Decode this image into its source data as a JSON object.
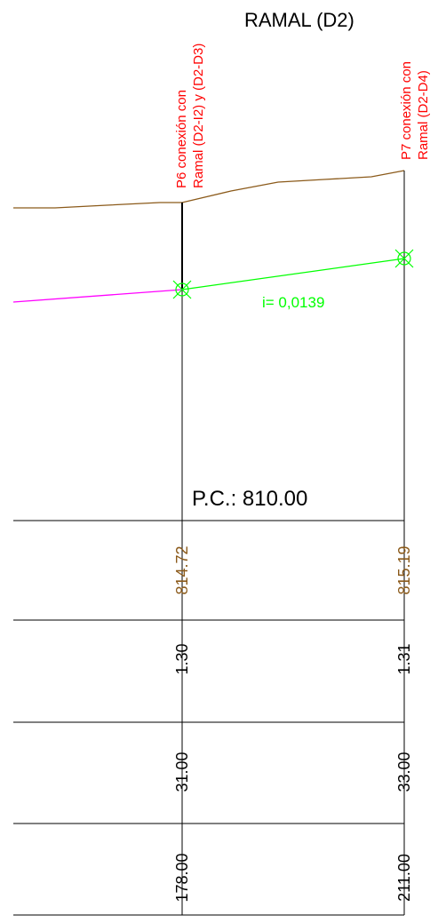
{
  "title": "RAMAL (D2)",
  "reference_plane": "P.C.: 810.00",
  "slope_label": "i= 0,0139",
  "wells": [
    {
      "label_line1": "P6 conexión con",
      "label_line2": "Ramal (D2-I2) y (D2-D3)"
    },
    {
      "label_line1": "P7 conexión con",
      "label_line2": "Ramal (D2-D4)"
    }
  ],
  "bands": [
    {
      "values": [
        "814.72",
        "815.19"
      ],
      "color": "#8b5a1a"
    },
    {
      "values": [
        "1.30",
        "1.31"
      ],
      "color": "#000000"
    },
    {
      "values": [
        "31.00",
        "33.00"
      ],
      "color": "#000000"
    },
    {
      "values": [
        "178.00",
        "211.00"
      ],
      "color": "#000000"
    }
  ],
  "colors": {
    "terrain": "#8b5a1a",
    "pipe_left": "#ff00ff",
    "pipe_right": "#00ff00",
    "labels": "#ff0000"
  }
}
